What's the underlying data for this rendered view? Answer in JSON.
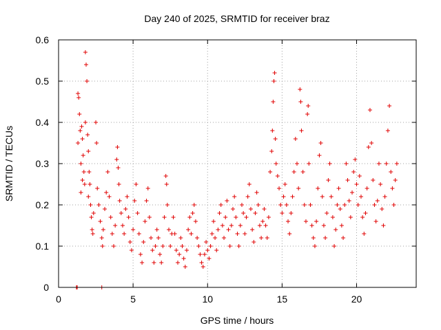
{
  "chart_data": {
    "type": "scatter",
    "title": "Day 240 of 2025, SRMTID for receiver braz",
    "xlabel": "GPS time / hours",
    "ylabel": "SRMTID / TECUs",
    "xlim": [
      0,
      24
    ],
    "ylim": [
      0,
      0.6
    ],
    "xticks": [
      0,
      5,
      10,
      15,
      20
    ],
    "xtick_labels": [
      "0",
      "5",
      "10",
      "15",
      "20"
    ],
    "yticks": [
      0,
      0.1,
      0.2,
      0.3,
      0.4,
      0.5,
      0.6
    ],
    "ytick_labels": [
      "0",
      "0.1",
      "0.2",
      "0.3",
      "0.4",
      "0.5",
      "0.6"
    ],
    "grid": true,
    "marker": "plus",
    "color": "#e00000",
    "series": [
      {
        "name": "SRMTID",
        "points": [
          [
            1.2,
            0.0
          ],
          [
            1.25,
            0.0
          ],
          [
            2.9,
            0.0
          ],
          [
            1.3,
            0.47
          ],
          [
            1.35,
            0.46
          ],
          [
            1.4,
            0.42
          ],
          [
            1.3,
            0.35
          ],
          [
            1.45,
            0.38
          ],
          [
            1.5,
            0.3
          ],
          [
            1.55,
            0.39
          ],
          [
            1.6,
            0.36
          ],
          [
            1.65,
            0.32
          ],
          [
            1.7,
            0.28
          ],
          [
            1.75,
            0.25
          ],
          [
            1.5,
            0.23
          ],
          [
            1.6,
            0.26
          ],
          [
            1.8,
            0.57
          ],
          [
            1.85,
            0.54
          ],
          [
            1.9,
            0.5
          ],
          [
            1.8,
            0.4
          ],
          [
            1.95,
            0.37
          ],
          [
            2.0,
            0.33
          ],
          [
            2.05,
            0.28
          ],
          [
            2.1,
            0.25
          ],
          [
            2.0,
            0.22
          ],
          [
            2.15,
            0.2
          ],
          [
            2.2,
            0.17
          ],
          [
            2.25,
            0.14
          ],
          [
            2.3,
            0.13
          ],
          [
            2.35,
            0.18
          ],
          [
            2.5,
            0.4
          ],
          [
            2.55,
            0.35
          ],
          [
            2.6,
            0.24
          ],
          [
            2.7,
            0.2
          ],
          [
            2.8,
            0.16
          ],
          [
            2.9,
            0.12
          ],
          [
            2.95,
            0.1
          ],
          [
            3.0,
            0.14
          ],
          [
            3.1,
            0.19
          ],
          [
            3.2,
            0.23
          ],
          [
            3.3,
            0.28
          ],
          [
            3.4,
            0.22
          ],
          [
            3.5,
            0.17
          ],
          [
            3.6,
            0.13
          ],
          [
            3.7,
            0.1
          ],
          [
            3.8,
            0.15
          ],
          [
            3.9,
            0.31
          ],
          [
            3.95,
            0.34
          ],
          [
            4.0,
            0.29
          ],
          [
            4.05,
            0.25
          ],
          [
            4.1,
            0.21
          ],
          [
            4.2,
            0.18
          ],
          [
            4.3,
            0.15
          ],
          [
            4.4,
            0.13
          ],
          [
            4.5,
            0.19
          ],
          [
            4.6,
            0.22
          ],
          [
            4.7,
            0.17
          ],
          [
            4.8,
            0.11
          ],
          [
            4.9,
            0.09
          ],
          [
            5.0,
            0.14
          ],
          [
            5.1,
            0.21
          ],
          [
            5.2,
            0.25
          ],
          [
            5.3,
            0.18
          ],
          [
            5.4,
            0.13
          ],
          [
            5.5,
            0.08
          ],
          [
            5.6,
            0.06
          ],
          [
            5.7,
            0.11
          ],
          [
            5.8,
            0.16
          ],
          [
            5.9,
            0.21
          ],
          [
            6.0,
            0.24
          ],
          [
            6.1,
            0.17
          ],
          [
            6.2,
            0.12
          ],
          [
            6.3,
            0.09
          ],
          [
            6.4,
            0.06
          ],
          [
            6.5,
            0.1
          ],
          [
            6.6,
            0.14
          ],
          [
            6.7,
            0.12
          ],
          [
            6.8,
            0.08
          ],
          [
            6.9,
            0.06
          ],
          [
            7.0,
            0.1
          ],
          [
            7.1,
            0.17
          ],
          [
            7.2,
            0.27
          ],
          [
            7.25,
            0.25
          ],
          [
            7.3,
            0.2
          ],
          [
            7.4,
            0.14
          ],
          [
            7.5,
            0.1
          ],
          [
            7.6,
            0.13
          ],
          [
            7.7,
            0.17
          ],
          [
            7.8,
            0.13
          ],
          [
            7.9,
            0.09
          ],
          [
            8.0,
            0.06
          ],
          [
            8.1,
            0.08
          ],
          [
            8.2,
            0.12
          ],
          [
            8.3,
            0.1
          ],
          [
            8.4,
            0.07
          ],
          [
            8.5,
            0.05
          ],
          [
            8.6,
            0.09
          ],
          [
            8.7,
            0.14
          ],
          [
            8.8,
            0.17
          ],
          [
            8.9,
            0.13
          ],
          [
            9.0,
            0.18
          ],
          [
            9.1,
            0.2
          ],
          [
            9.2,
            0.16
          ],
          [
            9.3,
            0.12
          ],
          [
            9.4,
            0.1
          ],
          [
            9.5,
            0.08
          ],
          [
            9.6,
            0.06
          ],
          [
            9.7,
            0.05
          ],
          [
            9.8,
            0.08
          ],
          [
            9.9,
            0.11
          ],
          [
            10.0,
            0.09
          ],
          [
            10.1,
            0.07
          ],
          [
            10.2,
            0.1
          ],
          [
            10.3,
            0.13
          ],
          [
            10.4,
            0.16
          ],
          [
            10.5,
            0.12
          ],
          [
            10.6,
            0.09
          ],
          [
            10.7,
            0.14
          ],
          [
            10.8,
            0.18
          ],
          [
            10.9,
            0.2
          ],
          [
            11.0,
            0.15
          ],
          [
            11.1,
            0.12
          ],
          [
            11.2,
            0.17
          ],
          [
            11.3,
            0.21
          ],
          [
            11.4,
            0.14
          ],
          [
            11.5,
            0.1
          ],
          [
            11.6,
            0.15
          ],
          [
            11.7,
            0.19
          ],
          [
            11.8,
            0.22
          ],
          [
            11.9,
            0.17
          ],
          [
            12.0,
            0.13
          ],
          [
            12.1,
            0.1
          ],
          [
            12.2,
            0.15
          ],
          [
            12.3,
            0.2
          ],
          [
            12.4,
            0.18
          ],
          [
            12.5,
            0.13
          ],
          [
            12.6,
            0.17
          ],
          [
            12.7,
            0.22
          ],
          [
            12.8,
            0.25
          ],
          [
            12.9,
            0.19
          ],
          [
            13.0,
            0.14
          ],
          [
            13.1,
            0.11
          ],
          [
            13.2,
            0.18
          ],
          [
            13.3,
            0.23
          ],
          [
            13.4,
            0.2
          ],
          [
            13.5,
            0.15
          ],
          [
            13.6,
            0.12
          ],
          [
            13.7,
            0.16
          ],
          [
            13.8,
            0.19
          ],
          [
            13.9,
            0.15
          ],
          [
            14.0,
            0.12
          ],
          [
            14.1,
            0.17
          ],
          [
            14.2,
            0.28
          ],
          [
            14.3,
            0.33
          ],
          [
            14.35,
            0.38
          ],
          [
            14.4,
            0.45
          ],
          [
            14.45,
            0.5
          ],
          [
            14.5,
            0.52
          ],
          [
            14.55,
            0.36
          ],
          [
            14.6,
            0.3
          ],
          [
            14.7,
            0.27
          ],
          [
            14.8,
            0.24
          ],
          [
            14.9,
            0.2
          ],
          [
            15.0,
            0.18
          ],
          [
            15.1,
            0.22
          ],
          [
            15.2,
            0.25
          ],
          [
            15.3,
            0.2
          ],
          [
            15.4,
            0.16
          ],
          [
            15.5,
            0.13
          ],
          [
            15.6,
            0.18
          ],
          [
            15.7,
            0.22
          ],
          [
            15.8,
            0.28
          ],
          [
            15.9,
            0.36
          ],
          [
            16.0,
            0.3
          ],
          [
            16.1,
            0.24
          ],
          [
            16.2,
            0.48
          ],
          [
            16.25,
            0.45
          ],
          [
            16.3,
            0.38
          ],
          [
            16.4,
            0.28
          ],
          [
            16.5,
            0.2
          ],
          [
            16.6,
            0.16
          ],
          [
            16.7,
            0.42
          ],
          [
            16.75,
            0.44
          ],
          [
            16.8,
            0.3
          ],
          [
            16.9,
            0.2
          ],
          [
            17.0,
            0.15
          ],
          [
            17.1,
            0.12
          ],
          [
            17.2,
            0.1
          ],
          [
            17.3,
            0.16
          ],
          [
            17.4,
            0.24
          ],
          [
            17.5,
            0.32
          ],
          [
            17.6,
            0.35
          ],
          [
            17.7,
            0.22
          ],
          [
            17.8,
            0.15
          ],
          [
            17.9,
            0.12
          ],
          [
            18.0,
            0.18
          ],
          [
            18.1,
            0.26
          ],
          [
            18.2,
            0.3
          ],
          [
            18.3,
            0.22
          ],
          [
            18.4,
            0.17
          ],
          [
            18.5,
            0.1
          ],
          [
            18.6,
            0.14
          ],
          [
            18.7,
            0.2
          ],
          [
            18.8,
            0.24
          ],
          [
            18.9,
            0.19
          ],
          [
            19.0,
            0.15
          ],
          [
            19.1,
            0.12
          ],
          [
            19.2,
            0.2
          ],
          [
            19.3,
            0.3
          ],
          [
            19.4,
            0.26
          ],
          [
            19.5,
            0.21
          ],
          [
            19.6,
            0.17
          ],
          [
            19.7,
            0.23
          ],
          [
            19.8,
            0.28
          ],
          [
            19.9,
            0.31
          ],
          [
            20.0,
            0.25
          ],
          [
            20.1,
            0.2
          ],
          [
            20.2,
            0.27
          ],
          [
            20.3,
            0.22
          ],
          [
            20.4,
            0.17
          ],
          [
            20.5,
            0.13
          ],
          [
            20.6,
            0.18
          ],
          [
            20.7,
            0.24
          ],
          [
            20.8,
            0.34
          ],
          [
            20.9,
            0.43
          ],
          [
            21.0,
            0.35
          ],
          [
            21.1,
            0.26
          ],
          [
            21.2,
            0.2
          ],
          [
            21.3,
            0.16
          ],
          [
            21.4,
            0.21
          ],
          [
            21.5,
            0.3
          ],
          [
            21.6,
            0.25
          ],
          [
            21.7,
            0.19
          ],
          [
            21.8,
            0.15
          ],
          [
            21.9,
            0.22
          ],
          [
            22.0,
            0.3
          ],
          [
            22.1,
            0.38
          ],
          [
            22.2,
            0.44
          ],
          [
            22.3,
            0.28
          ],
          [
            22.4,
            0.24
          ],
          [
            22.5,
            0.2
          ],
          [
            22.6,
            0.26
          ],
          [
            22.7,
            0.3
          ]
        ]
      }
    ]
  }
}
